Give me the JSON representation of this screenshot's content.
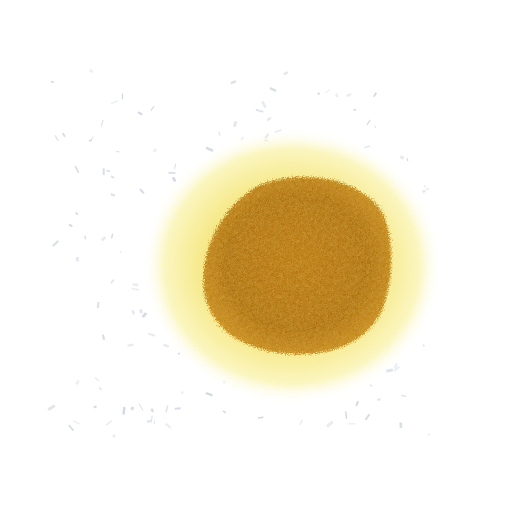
{
  "image": {
    "subject": "microscopy-colony",
    "colors": {
      "background": "#ffffff",
      "speckle": "#b9c3d0",
      "halo_outer": "#fbf6b8",
      "halo_inner": "#f4e37a",
      "core_dark": "#9b5c08",
      "core_mid": "#b9780f",
      "core_light": "#d39a2a"
    }
  }
}
